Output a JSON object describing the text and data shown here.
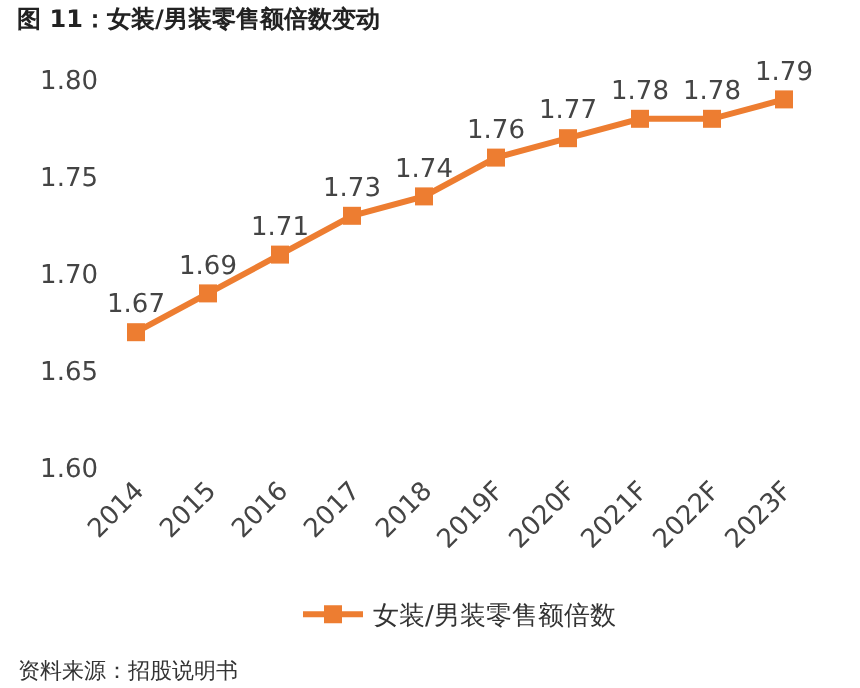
{
  "chart_data": {
    "type": "line",
    "title": "图 11：女装/男装零售额倍数变动",
    "categories": [
      "2014",
      "2015",
      "2016",
      "2017",
      "2018",
      "2019F",
      "2020F",
      "2021F",
      "2022F",
      "2023F"
    ],
    "series": [
      {
        "name": "女装/男装零售额倍数",
        "color": "#ed7d31",
        "values": [
          1.67,
          1.69,
          1.71,
          1.73,
          1.74,
          1.76,
          1.77,
          1.78,
          1.78,
          1.79
        ]
      }
    ],
    "ylim": [
      1.6,
      1.8
    ],
    "yticks": [
      {
        "value": 1.6,
        "label": "1.60"
      },
      {
        "value": 1.65,
        "label": "1.65"
      },
      {
        "value": 1.7,
        "label": "1.70"
      },
      {
        "value": 1.75,
        "label": "1.75"
      },
      {
        "value": 1.8,
        "label": "1.80"
      }
    ],
    "data_labels": true,
    "marker": "square",
    "legend": "bottom",
    "grid": false,
    "annotations": [
      "资料来源：招股说明书"
    ]
  }
}
